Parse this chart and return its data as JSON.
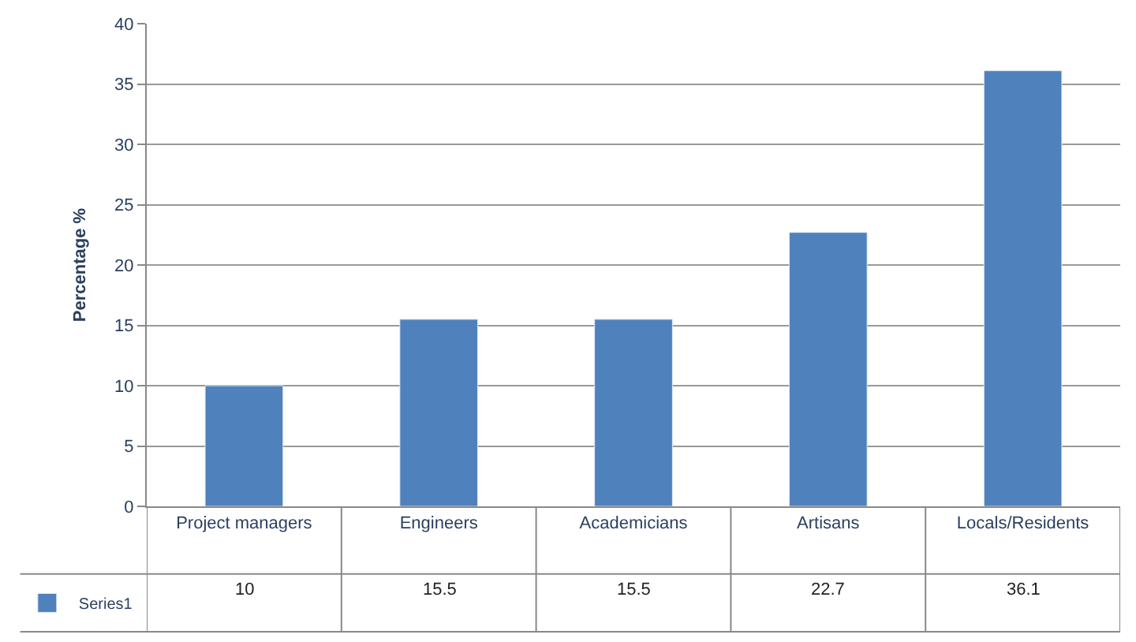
{
  "chart_data": {
    "type": "bar",
    "ylabel": "Percentage %",
    "categories": [
      "Project managers",
      "Engineers",
      "Academicians",
      "Artisans",
      "Locals/Residents"
    ],
    "series": [
      {
        "name": "Series1",
        "color": "#4f81bd",
        "values": [
          10,
          15.5,
          15.5,
          22.7,
          36.1
        ]
      }
    ],
    "ylim": [
      0,
      40
    ],
    "yticks": [
      0,
      5,
      10,
      15,
      20,
      25,
      30,
      35,
      40
    ],
    "grid": "y",
    "legend": "bottom",
    "data_labels": true
  }
}
